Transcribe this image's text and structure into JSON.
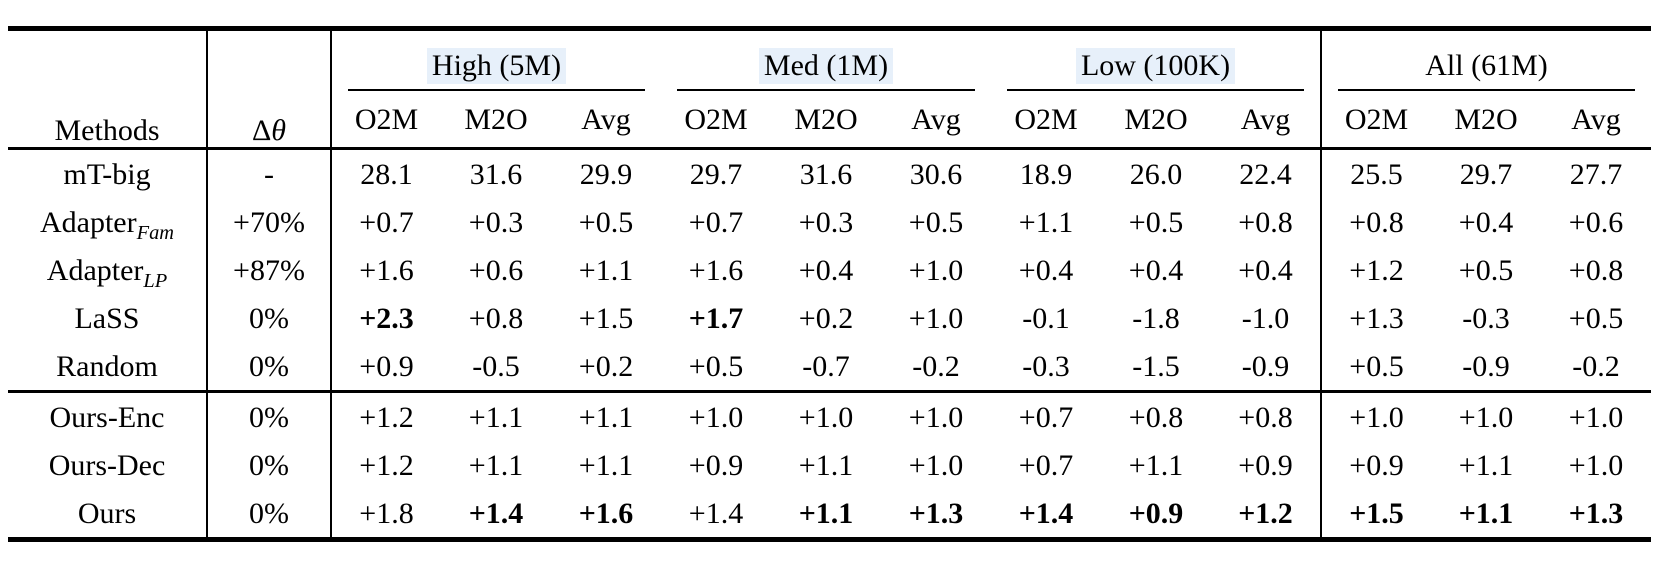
{
  "table": {
    "header": {
      "methods": "Methods",
      "delta_symbol": "Δ",
      "theta_symbol": "θ",
      "groups": [
        {
          "label": "High (5M)",
          "highlight": true
        },
        {
          "label": "Med (1M)",
          "highlight": true
        },
        {
          "label": "Low (100K)",
          "highlight": true
        },
        {
          "label": "All (61M)",
          "highlight": false
        }
      ],
      "subcols": [
        "O2M",
        "M2O",
        "Avg"
      ]
    },
    "highlight_color": "#e7f0fa",
    "rule_color": "#000000",
    "sections": [
      {
        "name": "baselines",
        "rows": [
          {
            "method": "mT-big",
            "method_sub": "",
            "delta": "-",
            "cells": [
              {
                "v": "28.1",
                "b": false
              },
              {
                "v": "31.6",
                "b": false
              },
              {
                "v": "29.9",
                "b": false
              },
              {
                "v": "29.7",
                "b": false
              },
              {
                "v": "31.6",
                "b": false
              },
              {
                "v": "30.6",
                "b": false
              },
              {
                "v": "18.9",
                "b": false
              },
              {
                "v": "26.0",
                "b": false
              },
              {
                "v": "22.4",
                "b": false
              },
              {
                "v": "25.5",
                "b": false
              },
              {
                "v": "29.7",
                "b": false
              },
              {
                "v": "27.7",
                "b": false
              }
            ]
          },
          {
            "method": "Adapter",
            "method_sub": "Fam",
            "delta": "+70%",
            "cells": [
              {
                "v": "+0.7",
                "b": false
              },
              {
                "v": "+0.3",
                "b": false
              },
              {
                "v": "+0.5",
                "b": false
              },
              {
                "v": "+0.7",
                "b": false
              },
              {
                "v": "+0.3",
                "b": false
              },
              {
                "v": "+0.5",
                "b": false
              },
              {
                "v": "+1.1",
                "b": false
              },
              {
                "v": "+0.5",
                "b": false
              },
              {
                "v": "+0.8",
                "b": false
              },
              {
                "v": "+0.8",
                "b": false
              },
              {
                "v": "+0.4",
                "b": false
              },
              {
                "v": "+0.6",
                "b": false
              }
            ]
          },
          {
            "method": "Adapter",
            "method_sub": "LP",
            "delta": "+87%",
            "cells": [
              {
                "v": "+1.6",
                "b": false
              },
              {
                "v": "+0.6",
                "b": false
              },
              {
                "v": "+1.1",
                "b": false
              },
              {
                "v": "+1.6",
                "b": false
              },
              {
                "v": "+0.4",
                "b": false
              },
              {
                "v": "+1.0",
                "b": false
              },
              {
                "v": "+0.4",
                "b": false
              },
              {
                "v": "+0.4",
                "b": false
              },
              {
                "v": "+0.4",
                "b": false
              },
              {
                "v": "+1.2",
                "b": false
              },
              {
                "v": "+0.5",
                "b": false
              },
              {
                "v": "+0.8",
                "b": false
              }
            ]
          },
          {
            "method": "LaSS",
            "method_sub": "",
            "delta": "0%",
            "cells": [
              {
                "v": "+2.3",
                "b": true
              },
              {
                "v": "+0.8",
                "b": false
              },
              {
                "v": "+1.5",
                "b": false
              },
              {
                "v": "+1.7",
                "b": true
              },
              {
                "v": "+0.2",
                "b": false
              },
              {
                "v": "+1.0",
                "b": false
              },
              {
                "v": "-0.1",
                "b": false
              },
              {
                "v": "-1.8",
                "b": false
              },
              {
                "v": "-1.0",
                "b": false
              },
              {
                "v": "+1.3",
                "b": false
              },
              {
                "v": "-0.3",
                "b": false
              },
              {
                "v": "+0.5",
                "b": false
              }
            ]
          },
          {
            "method": "Random",
            "method_sub": "",
            "delta": "0%",
            "cells": [
              {
                "v": "+0.9",
                "b": false
              },
              {
                "v": "-0.5",
                "b": false
              },
              {
                "v": "+0.2",
                "b": false
              },
              {
                "v": "+0.5",
                "b": false
              },
              {
                "v": "-0.7",
                "b": false
              },
              {
                "v": "-0.2",
                "b": false
              },
              {
                "v": "-0.3",
                "b": false
              },
              {
                "v": "-1.5",
                "b": false
              },
              {
                "v": "-0.9",
                "b": false
              },
              {
                "v": "+0.5",
                "b": false
              },
              {
                "v": "-0.9",
                "b": false
              },
              {
                "v": "-0.2",
                "b": false
              }
            ]
          }
        ]
      },
      {
        "name": "ours",
        "rows": [
          {
            "method": "Ours-Enc",
            "method_sub": "",
            "delta": "0%",
            "cells": [
              {
                "v": "+1.2",
                "b": false
              },
              {
                "v": "+1.1",
                "b": false
              },
              {
                "v": "+1.1",
                "b": false
              },
              {
                "v": "+1.0",
                "b": false
              },
              {
                "v": "+1.0",
                "b": false
              },
              {
                "v": "+1.0",
                "b": false
              },
              {
                "v": "+0.7",
                "b": false
              },
              {
                "v": "+0.8",
                "b": false
              },
              {
                "v": "+0.8",
                "b": false
              },
              {
                "v": "+1.0",
                "b": false
              },
              {
                "v": "+1.0",
                "b": false
              },
              {
                "v": "+1.0",
                "b": false
              }
            ]
          },
          {
            "method": "Ours-Dec",
            "method_sub": "",
            "delta": "0%",
            "cells": [
              {
                "v": "+1.2",
                "b": false
              },
              {
                "v": "+1.1",
                "b": false
              },
              {
                "v": "+1.1",
                "b": false
              },
              {
                "v": "+0.9",
                "b": false
              },
              {
                "v": "+1.1",
                "b": false
              },
              {
                "v": "+1.0",
                "b": false
              },
              {
                "v": "+0.7",
                "b": false
              },
              {
                "v": "+1.1",
                "b": false
              },
              {
                "v": "+0.9",
                "b": false
              },
              {
                "v": "+0.9",
                "b": false
              },
              {
                "v": "+1.1",
                "b": false
              },
              {
                "v": "+1.0",
                "b": false
              }
            ]
          },
          {
            "method": "Ours",
            "method_sub": "",
            "delta": "0%",
            "cells": [
              {
                "v": "+1.8",
                "b": false
              },
              {
                "v": "+1.4",
                "b": true
              },
              {
                "v": "+1.6",
                "b": true
              },
              {
                "v": "+1.4",
                "b": false
              },
              {
                "v": "+1.1",
                "b": true
              },
              {
                "v": "+1.3",
                "b": true
              },
              {
                "v": "+1.4",
                "b": true
              },
              {
                "v": "+0.9",
                "b": true
              },
              {
                "v": "+1.2",
                "b": true
              },
              {
                "v": "+1.5",
                "b": true
              },
              {
                "v": "+1.1",
                "b": true
              },
              {
                "v": "+1.3",
                "b": true
              }
            ]
          }
        ]
      }
    ]
  }
}
